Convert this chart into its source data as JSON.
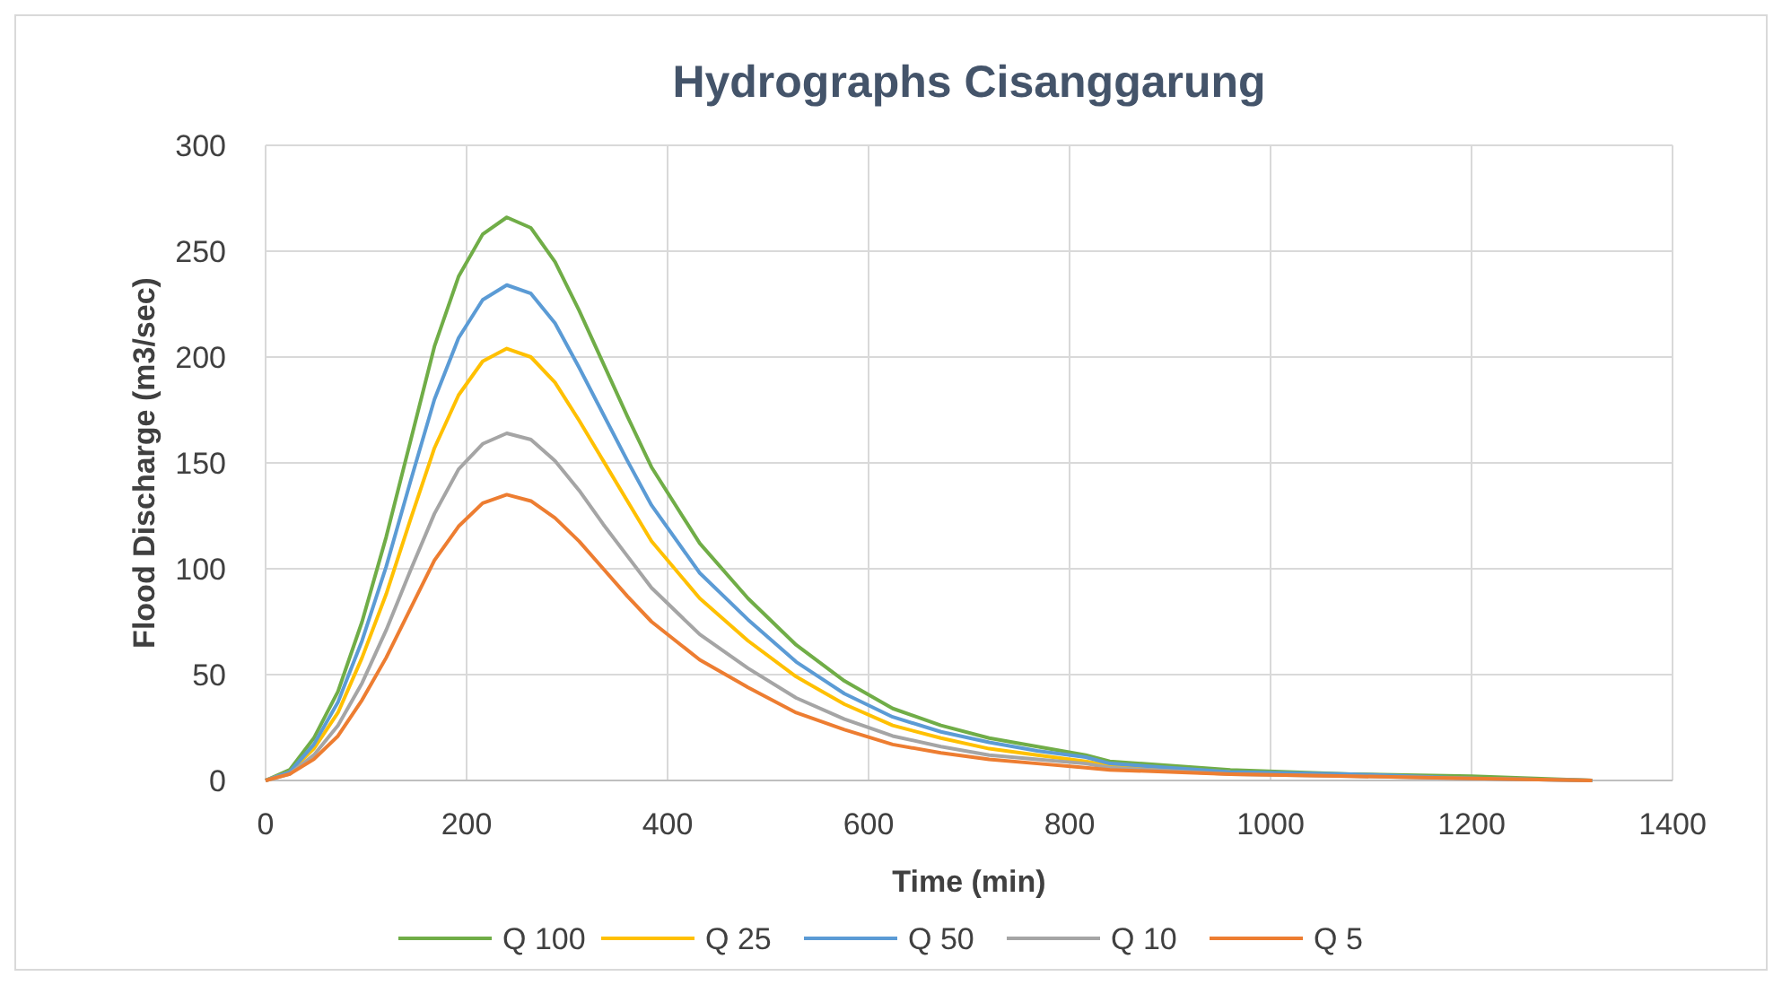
{
  "chart_data": {
    "type": "line",
    "title": "Hydrographs Cisanggarung",
    "xlabel": "Time (min)",
    "ylabel": "Flood Discharge (m3/sec)",
    "x": [
      0,
      24,
      48,
      72,
      96,
      120,
      144,
      168,
      192,
      216,
      240,
      264,
      288,
      312,
      336,
      360,
      384,
      432,
      480,
      528,
      576,
      624,
      672,
      720,
      768,
      816,
      840,
      960,
      1080,
      1200,
      1320
    ],
    "xlim": [
      0,
      1400
    ],
    "xticks": [
      0,
      200,
      400,
      600,
      800,
      1000,
      1200,
      1400
    ],
    "ylim": [
      0,
      300
    ],
    "yticks": [
      0,
      50,
      100,
      150,
      200,
      250,
      300
    ],
    "grid": true,
    "legend": "bottom",
    "marker": "none",
    "line_style": "solid",
    "series": [
      {
        "name": "Q 100",
        "color": "#70ad47",
        "values": [
          0,
          5,
          20,
          42,
          75,
          115,
          160,
          205,
          238,
          258,
          266,
          261,
          245,
          222,
          197,
          172,
          148,
          112,
          86,
          64,
          47,
          34,
          26,
          20,
          16,
          12,
          9,
          5,
          3,
          2,
          0
        ]
      },
      {
        "name": "Q 25",
        "color": "#ffc000",
        "values": [
          0,
          4,
          15,
          32,
          58,
          88,
          123,
          157,
          182,
          198,
          204,
          200,
          188,
          170,
          151,
          132,
          113,
          86,
          66,
          49,
          36,
          26,
          20,
          15,
          12,
          9,
          7,
          4,
          null,
          null,
          null
        ]
      },
      {
        "name": "Q 50",
        "color": "#5b9bd5",
        "values": [
          0,
          4,
          17,
          37,
          66,
          101,
          141,
          180,
          209,
          227,
          234,
          230,
          216,
          195,
          173,
          151,
          130,
          98,
          76,
          56,
          41,
          30,
          23,
          18,
          14,
          11,
          8,
          4,
          3,
          1,
          0
        ]
      },
      {
        "name": "Q 10",
        "color": "#a5a5a5",
        "values": [
          0,
          3,
          12,
          26,
          46,
          71,
          99,
          126,
          147,
          159,
          164,
          161,
          151,
          137,
          121,
          106,
          91,
          69,
          53,
          39,
          29,
          21,
          16,
          12,
          10,
          8,
          6,
          3,
          2,
          1,
          0
        ]
      },
      {
        "name": "Q 5",
        "color": "#ed7d31",
        "values": [
          0,
          3,
          10,
          21,
          38,
          58,
          81,
          104,
          120,
          131,
          135,
          132,
          124,
          113,
          100,
          87,
          75,
          57,
          44,
          32,
          24,
          17,
          13,
          10,
          8,
          6,
          5,
          3,
          2,
          1,
          0
        ]
      }
    ]
  }
}
